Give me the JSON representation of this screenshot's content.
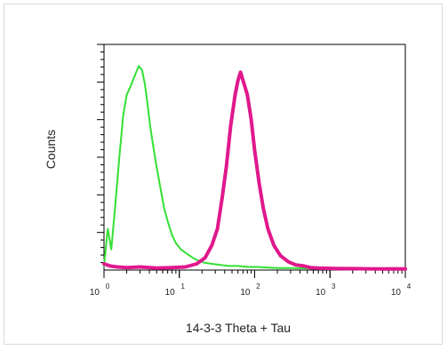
{
  "chart_data": {
    "type": "line",
    "title": "",
    "xlabel": "14-3-3 Theta + Tau",
    "ylabel": "Counts",
    "xscale": "log",
    "xlim": [
      1,
      10000
    ],
    "ylim": [
      0,
      1
    ],
    "grid": false,
    "x_ticks": [
      {
        "base": "10",
        "exp": "0",
        "value": 1
      },
      {
        "base": "10",
        "exp": "1",
        "value": 10
      },
      {
        "base": "10",
        "exp": "2",
        "value": 100
      },
      {
        "base": "10",
        "exp": "3",
        "value": 1000
      },
      {
        "base": "10",
        "exp": "4",
        "value": 10000
      }
    ],
    "series": [
      {
        "color": "#33e033",
        "x": [
          1,
          1.12,
          1.25,
          1.4,
          1.6,
          1.8,
          2.0,
          2.3,
          2.6,
          2.9,
          3.2,
          3.5,
          3.8,
          4.1,
          4.5,
          5.0,
          5.6,
          6.3,
          7.1,
          8.0,
          9.0,
          10.5,
          12.5,
          15,
          18,
          22,
          27,
          35,
          45,
          60,
          80,
          110,
          150,
          200,
          300,
          500,
          800,
          1200,
          2000,
          3000,
          5000,
          7000,
          10000
        ],
        "y": [
          0.02,
          0.2,
          0.1,
          0.3,
          0.55,
          0.75,
          0.85,
          0.9,
          0.95,
          0.99,
          0.97,
          0.9,
          0.8,
          0.7,
          0.6,
          0.5,
          0.4,
          0.3,
          0.23,
          0.17,
          0.13,
          0.1,
          0.08,
          0.06,
          0.045,
          0.035,
          0.03,
          0.025,
          0.02,
          0.02,
          0.015,
          0.015,
          0.012,
          0.01,
          0.01,
          0.008,
          0.006,
          0.005,
          0.005,
          0.004,
          0.004,
          0.005,
          0.004
        ]
      },
      {
        "color": "#e0188c",
        "x": [
          1,
          1.2,
          1.5,
          2,
          3,
          5,
          8,
          12,
          17,
          22,
          27,
          32,
          37,
          42,
          48,
          55,
          60,
          65,
          70,
          80,
          90,
          100,
          115,
          130,
          150,
          180,
          220,
          280,
          350,
          450,
          550,
          700,
          1000,
          1500,
          2000,
          3000,
          5000,
          7000,
          10000
        ],
        "y": [
          0.03,
          0.02,
          0.015,
          0.012,
          0.015,
          0.01,
          0.012,
          0.015,
          0.03,
          0.06,
          0.12,
          0.2,
          0.35,
          0.5,
          0.7,
          0.85,
          0.92,
          0.96,
          0.92,
          0.85,
          0.73,
          0.58,
          0.42,
          0.3,
          0.2,
          0.12,
          0.07,
          0.04,
          0.025,
          0.02,
          0.012,
          0.01,
          0.008,
          0.007,
          0.007,
          0.006,
          0.005,
          0.006,
          0.005
        ]
      }
    ]
  }
}
